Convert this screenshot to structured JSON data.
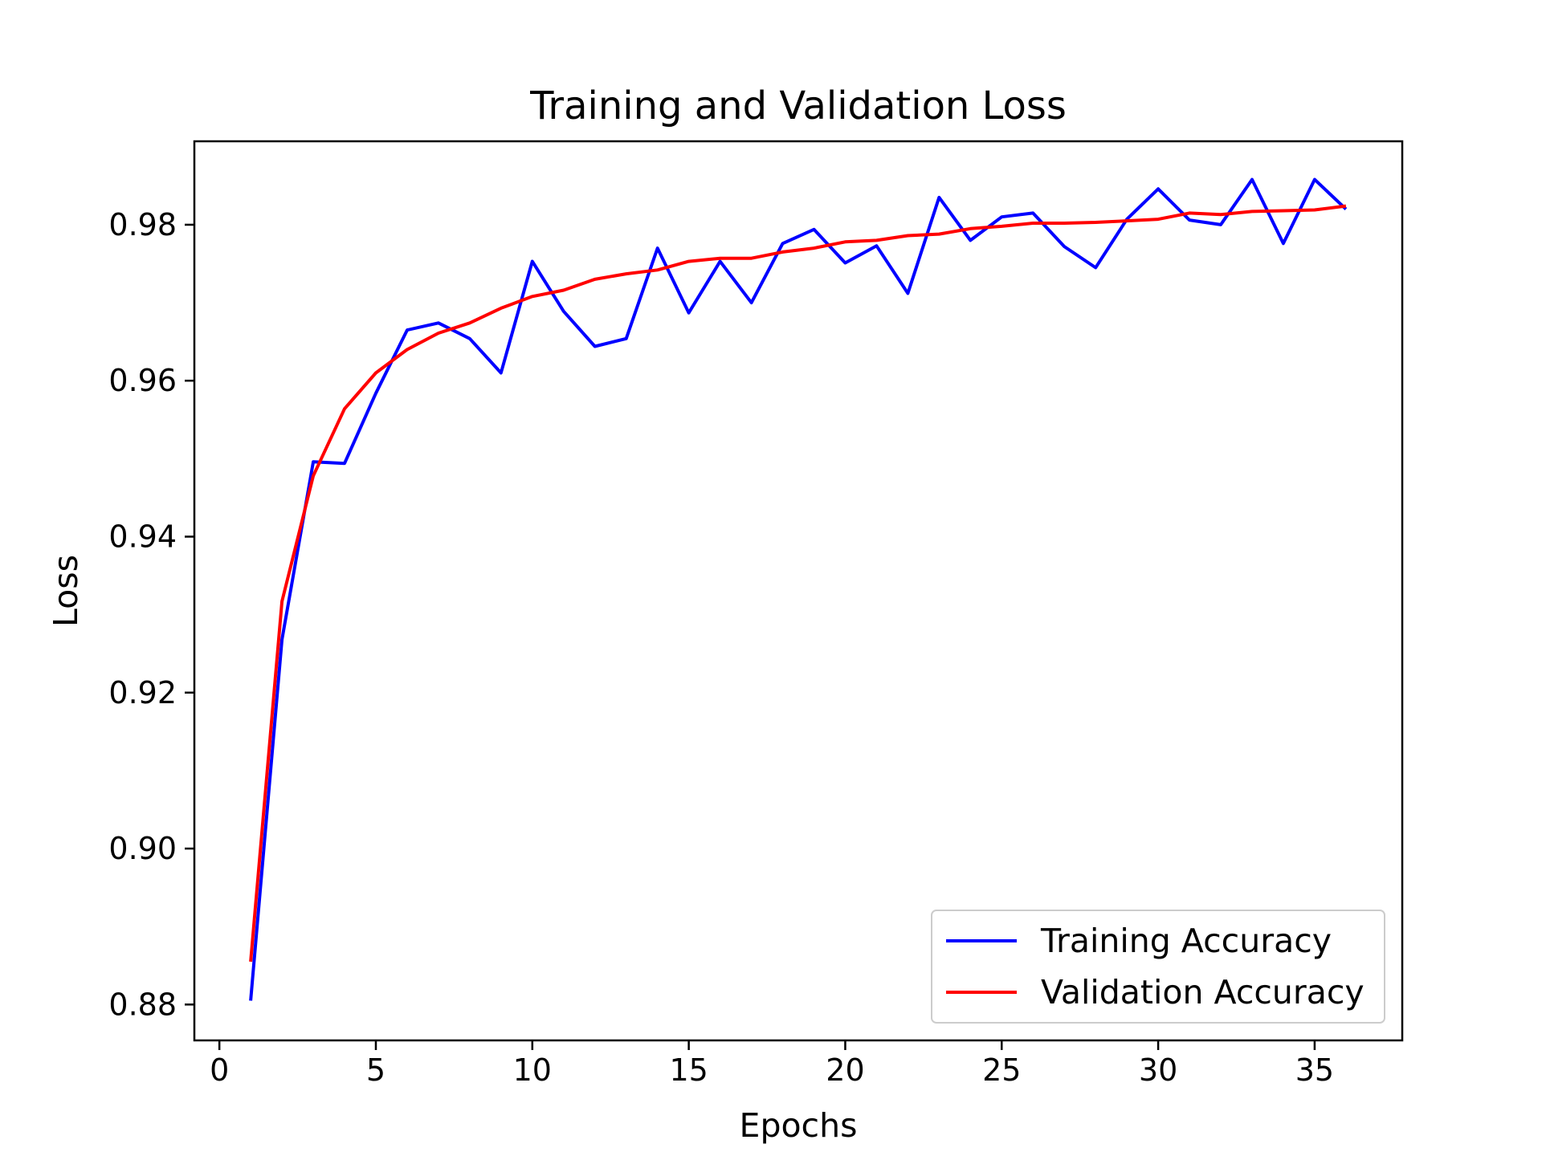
{
  "chart_data": {
    "type": "line",
    "title": "Training and Validation Loss",
    "xlabel": "Epochs",
    "ylabel": "Loss",
    "xlim": [
      -0.8,
      37.8
    ],
    "ylim": [
      0.8754,
      0.9907
    ],
    "xticks": [
      0,
      5,
      10,
      15,
      20,
      25,
      30,
      35
    ],
    "yticks": [
      0.88,
      0.9,
      0.92,
      0.94,
      0.96,
      0.98
    ],
    "ytick_labels": [
      "0.88",
      "0.90",
      "0.92",
      "0.94",
      "0.96",
      "0.98"
    ],
    "grid": false,
    "legend_position": "lower-right",
    "x": [
      1,
      2,
      3,
      4,
      5,
      6,
      7,
      8,
      9,
      10,
      11,
      12,
      13,
      14,
      15,
      16,
      17,
      18,
      19,
      20,
      21,
      22,
      23,
      24,
      25,
      26,
      27,
      28,
      29,
      30,
      31,
      32,
      33,
      34,
      35,
      36
    ],
    "series": [
      {
        "name": "Training Accuracy",
        "color": "#0000ff",
        "values": [
          0.8805,
          0.9268,
          0.9496,
          0.9494,
          0.9584,
          0.9665,
          0.9674,
          0.9654,
          0.961,
          0.9753,
          0.9689,
          0.9644,
          0.9654,
          0.977,
          0.9687,
          0.9753,
          0.97,
          0.9776,
          0.9794,
          0.9751,
          0.9773,
          0.9712,
          0.9835,
          0.978,
          0.981,
          0.9815,
          0.9772,
          0.9745,
          0.9807,
          0.9846,
          0.9806,
          0.98,
          0.9858,
          0.9776,
          0.9858,
          0.982
        ]
      },
      {
        "name": "Validation Accuracy",
        "color": "#ff0000",
        "values": [
          0.8855,
          0.9317,
          0.9478,
          0.9564,
          0.961,
          0.964,
          0.9661,
          0.9674,
          0.9693,
          0.9708,
          0.9716,
          0.973,
          0.9737,
          0.9742,
          0.9753,
          0.9757,
          0.9757,
          0.9765,
          0.977,
          0.9778,
          0.978,
          0.9786,
          0.9788,
          0.9795,
          0.9798,
          0.9802,
          0.9802,
          0.9803,
          0.9805,
          0.9807,
          0.9815,
          0.9813,
          0.9817,
          0.9818,
          0.9819,
          0.9824
        ]
      }
    ]
  }
}
